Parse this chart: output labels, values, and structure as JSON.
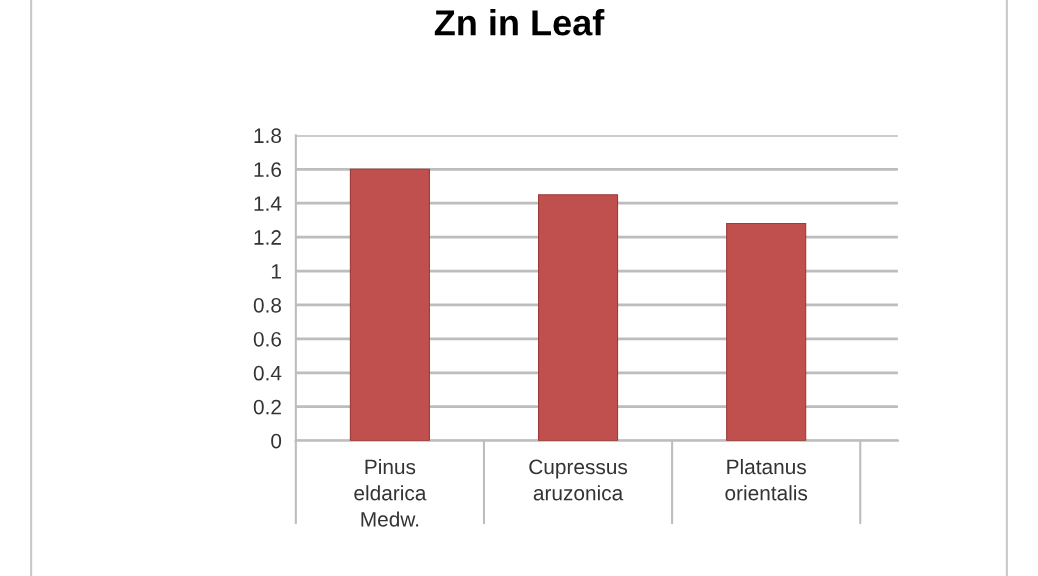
{
  "chart_data": {
    "type": "bar",
    "title": "Zn in Leaf",
    "categories": [
      "Pinus eldarica Medw.",
      "Cupressus aruzonica",
      "Platanus orientalis"
    ],
    "values": [
      1.6,
      1.45,
      1.28
    ],
    "color": "#c0504d",
    "ylim": [
      0,
      1.8
    ],
    "yticks": [
      0,
      0.2,
      0.4,
      0.6,
      0.8,
      1,
      1.2,
      1.4,
      1.6,
      1.8
    ],
    "grid": "y",
    "legend": false
  }
}
